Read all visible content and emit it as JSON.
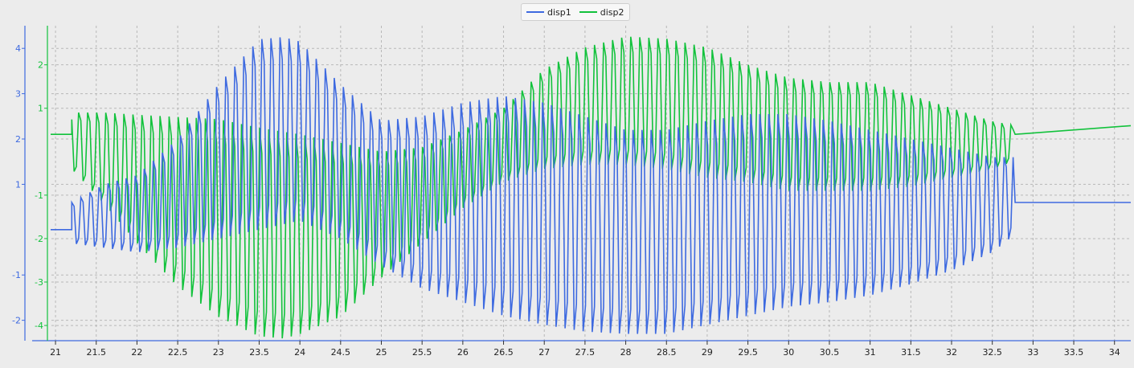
{
  "colors": {
    "background": "#ececec",
    "grid": "#b8b8b8",
    "disp1": "#3e6ae0",
    "disp2": "#12c23c",
    "bottom_axis": "#3e6ae0"
  },
  "legend": {
    "items": [
      {
        "label": "disp1",
        "color": "#3e6ae0"
      },
      {
        "label": "disp2",
        "color": "#12c23c"
      }
    ]
  },
  "chart_data": {
    "type": "line",
    "title": "",
    "xlabel": "",
    "ylabel": "",
    "grid": true,
    "legend_position": "top-center",
    "x_axis": {
      "range": [
        20.95,
        34.2
      ],
      "ticks": [
        "21",
        "21.5",
        "22",
        "22.5",
        "23",
        "23.5",
        "24",
        "24.5",
        "25",
        "25.5",
        "26",
        "26.5",
        "27",
        "27.5",
        "28",
        "28.5",
        "29",
        "29.5",
        "30",
        "30.5",
        "31",
        "31.5",
        "32",
        "32.5",
        "33",
        "33.5",
        "34"
      ]
    },
    "y_axes": [
      {
        "name": "disp1",
        "range": [
          -2.45,
          4.5
        ],
        "ticks": [
          "4",
          "3",
          "2",
          "1",
          "-1",
          "-2"
        ]
      },
      {
        "name": "disp2",
        "range": [
          -4.35,
          2.9
        ],
        "ticks": [
          "2",
          "1",
          "-1",
          "-2",
          "-3",
          "-4"
        ]
      }
    ],
    "series": [
      {
        "name": "disp1",
        "axis": 0,
        "baseline": 0.0,
        "start": 21.2,
        "end": 32.78,
        "idle_before": 0.0,
        "idle_after": 0.6,
        "oscillation_cycles_per_unit": 9,
        "envelope_top": [
          [
            21.2,
            0.6
          ],
          [
            21.6,
            1.0
          ],
          [
            22.0,
            1.2
          ],
          [
            22.5,
            2.0
          ],
          [
            23.0,
            3.2
          ],
          [
            23.5,
            4.2
          ],
          [
            23.8,
            4.25
          ],
          [
            24.0,
            4.15
          ],
          [
            24.5,
            3.2
          ],
          [
            25.0,
            2.4
          ],
          [
            25.5,
            2.5
          ],
          [
            26.0,
            2.8
          ],
          [
            26.5,
            2.95
          ],
          [
            27.0,
            2.8
          ],
          [
            27.5,
            2.5
          ],
          [
            28.0,
            2.2
          ],
          [
            28.5,
            2.2
          ],
          [
            29.0,
            2.4
          ],
          [
            29.5,
            2.55
          ],
          [
            30.0,
            2.55
          ],
          [
            30.5,
            2.4
          ],
          [
            31.0,
            2.2
          ],
          [
            31.5,
            2.0
          ],
          [
            32.0,
            1.8
          ],
          [
            32.5,
            1.6
          ],
          [
            32.78,
            1.6
          ]
        ],
        "envelope_bottom": [
          [
            21.2,
            -0.3
          ],
          [
            21.6,
            -0.4
          ],
          [
            22.0,
            -0.5
          ],
          [
            22.5,
            -0.4
          ],
          [
            23.0,
            -0.2
          ],
          [
            23.5,
            0.0
          ],
          [
            24.0,
            0.2
          ],
          [
            24.5,
            -0.2
          ],
          [
            25.0,
            -0.8
          ],
          [
            25.5,
            -1.3
          ],
          [
            26.0,
            -1.6
          ],
          [
            26.5,
            -1.9
          ],
          [
            27.0,
            -2.1
          ],
          [
            27.5,
            -2.25
          ],
          [
            28.0,
            -2.3
          ],
          [
            28.5,
            -2.3
          ],
          [
            29.0,
            -2.1
          ],
          [
            29.5,
            -1.9
          ],
          [
            30.0,
            -1.7
          ],
          [
            30.5,
            -1.6
          ],
          [
            31.0,
            -1.45
          ],
          [
            31.5,
            -1.2
          ],
          [
            32.0,
            -0.9
          ],
          [
            32.5,
            -0.5
          ],
          [
            32.78,
            -0.1
          ]
        ]
      },
      {
        "name": "disp2",
        "axis": 1,
        "baseline": 0.4,
        "start": 21.2,
        "end": 32.78,
        "idle_before": 0.4,
        "idle_after": 0.4,
        "idle_after_end": 0.6,
        "oscillation_cycles_per_unit": 9,
        "envelope_top": [
          [
            21.2,
            0.9
          ],
          [
            21.6,
            0.9
          ],
          [
            22.0,
            0.85
          ],
          [
            22.5,
            0.8
          ],
          [
            23.0,
            0.75
          ],
          [
            23.5,
            0.55
          ],
          [
            24.0,
            0.4
          ],
          [
            24.5,
            0.2
          ],
          [
            25.0,
            0.0
          ],
          [
            25.5,
            0.1
          ],
          [
            26.0,
            0.5
          ],
          [
            26.5,
            1.0
          ],
          [
            27.0,
            1.9
          ],
          [
            27.5,
            2.4
          ],
          [
            28.0,
            2.65
          ],
          [
            28.5,
            2.6
          ],
          [
            29.0,
            2.4
          ],
          [
            29.5,
            2.0
          ],
          [
            30.0,
            1.7
          ],
          [
            30.5,
            1.6
          ],
          [
            31.0,
            1.6
          ],
          [
            31.5,
            1.3
          ],
          [
            32.0,
            1.0
          ],
          [
            32.5,
            0.7
          ],
          [
            32.78,
            0.6
          ]
        ],
        "envelope_bottom": [
          [
            21.2,
            -0.4
          ],
          [
            21.6,
            -1.2
          ],
          [
            22.0,
            -2.1
          ],
          [
            22.5,
            -3.1
          ],
          [
            23.0,
            -3.8
          ],
          [
            23.5,
            -4.25
          ],
          [
            23.8,
            -4.3
          ],
          [
            24.0,
            -4.2
          ],
          [
            24.5,
            -3.8
          ],
          [
            25.0,
            -2.9
          ],
          [
            25.5,
            -2.1
          ],
          [
            26.0,
            -1.3
          ],
          [
            26.5,
            -0.7
          ],
          [
            27.0,
            -0.4
          ],
          [
            27.5,
            -0.3
          ],
          [
            28.0,
            -0.3
          ],
          [
            28.5,
            -0.4
          ],
          [
            29.0,
            -0.6
          ],
          [
            29.5,
            -0.7
          ],
          [
            30.0,
            -0.9
          ],
          [
            30.5,
            -0.9
          ],
          [
            31.0,
            -0.9
          ],
          [
            31.5,
            -0.8
          ],
          [
            32.0,
            -0.6
          ],
          [
            32.5,
            -0.4
          ],
          [
            32.78,
            -0.2
          ]
        ]
      }
    ]
  }
}
